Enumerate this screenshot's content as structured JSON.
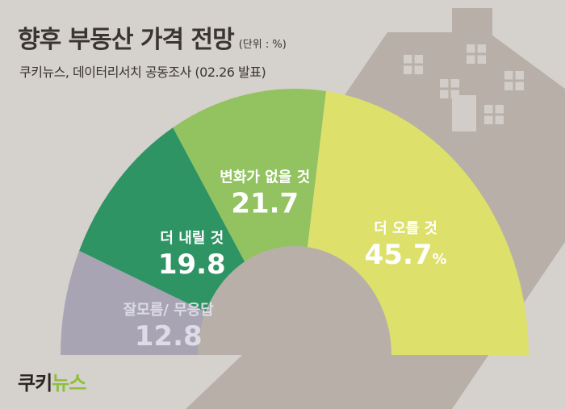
{
  "header": {
    "title": "향후 부동산 가격 전망",
    "unit": "(단위 : %)",
    "subtitle": "쿠키뉴스, 데이터리서치 공동조사 (02.26 발표)"
  },
  "brand": {
    "logo_main": "쿠키",
    "logo_accent": "뉴스"
  },
  "colors": {
    "background": "#d5d1cc",
    "house": "#b8b0a8",
    "slice_1": "#a8a4b4",
    "slice_2": "#2e9464",
    "slice_3": "#92c360",
    "slice_4": "#dde06a",
    "slice_1_text": "#dddbe6",
    "slice_4_text": "#ffffff"
  },
  "chart_data": {
    "type": "pie",
    "style": "half-donut",
    "title": "향후 부동산 가격 전망",
    "unit": "%",
    "slices": [
      {
        "label": "잘모름/ 무응답",
        "value": 12.8,
        "value_text": "12.8",
        "suffix": ""
      },
      {
        "label": "더 내릴 것",
        "value": 19.8,
        "value_text": "19.8",
        "suffix": ""
      },
      {
        "label": "변화가 없을 것",
        "value": 21.7,
        "value_text": "21.7",
        "suffix": ""
      },
      {
        "label": "더 오를 것",
        "value": 45.7,
        "value_text": "45.7",
        "suffix": "%"
      }
    ]
  }
}
